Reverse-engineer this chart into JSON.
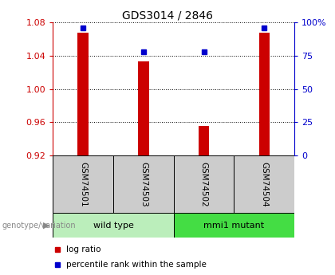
{
  "title": "GDS3014 / 2846",
  "samples": [
    "GSM74501",
    "GSM74503",
    "GSM74502",
    "GSM74504"
  ],
  "log_ratio_values": [
    1.068,
    1.033,
    0.955,
    1.068
  ],
  "log_ratio_base": 0.92,
  "percentile_values": [
    96,
    78,
    78,
    96
  ],
  "left_ylim": [
    0.92,
    1.08
  ],
  "left_yticks": [
    0.92,
    0.96,
    1.0,
    1.04,
    1.08
  ],
  "right_yticks": [
    0,
    25,
    50,
    75,
    100
  ],
  "right_yticklabels": [
    "0",
    "25",
    "50",
    "75",
    "100%"
  ],
  "bar_color": "#cc0000",
  "square_color": "#0000cc",
  "left_tick_color": "#cc0000",
  "right_tick_color": "#0000cc",
  "groups": [
    {
      "label": "wild type",
      "samples": [
        0,
        1
      ],
      "color": "#bbeebb"
    },
    {
      "label": "mmi1 mutant",
      "samples": [
        2,
        3
      ],
      "color": "#44dd44"
    }
  ],
  "group_label_text": "genotype/variation",
  "legend_items": [
    {
      "label": "log ratio",
      "color": "#cc0000"
    },
    {
      "label": "percentile rank within the sample",
      "color": "#0000cc"
    }
  ],
  "bg_color": "#ffffff",
  "plot_bg_color": "#ffffff",
  "label_area_bg": "#cccccc",
  "fig_width": 4.2,
  "fig_height": 3.45,
  "dpi": 100
}
